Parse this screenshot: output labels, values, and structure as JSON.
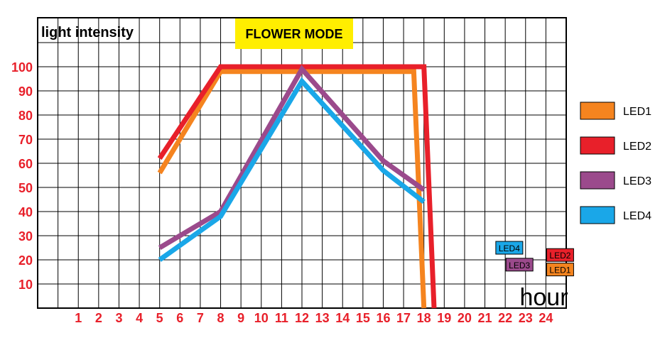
{
  "chart_data": {
    "type": "line",
    "title": "FLOWER MODE",
    "ylabel": "light intensity",
    "xlabel": "hour",
    "x_ticks": [
      "1",
      "2",
      "3",
      "4",
      "5",
      "6",
      "7",
      "8",
      "9",
      "10",
      "11",
      "12",
      "13",
      "14",
      "15",
      "16",
      "17",
      "18",
      "19",
      "20",
      "21",
      "22",
      "23",
      "24"
    ],
    "y_ticks": [
      "10",
      "20",
      "30",
      "40",
      "50",
      "60",
      "70",
      "80",
      "90",
      "100"
    ],
    "xlim": [
      0,
      25
    ],
    "ylim": [
      0,
      110
    ],
    "grid": true,
    "legend_placement": "right",
    "series": [
      {
        "name": "LED1",
        "color": "#f5841f",
        "points": [
          [
            5,
            56
          ],
          [
            8,
            98
          ],
          [
            17.5,
            98
          ],
          [
            18,
            0
          ]
        ]
      },
      {
        "name": "LED2",
        "color": "#e8202a",
        "points": [
          [
            5,
            62
          ],
          [
            8,
            100
          ],
          [
            18,
            100
          ],
          [
            18.5,
            0
          ]
        ]
      },
      {
        "name": "LED3",
        "color": "#9b4a8c",
        "points": [
          [
            5,
            25
          ],
          [
            8,
            40
          ],
          [
            12,
            99
          ],
          [
            16,
            61
          ],
          [
            18,
            49
          ]
        ]
      },
      {
        "name": "LED4",
        "color": "#1aa7e8",
        "points": [
          [
            5,
            20
          ],
          [
            8,
            38
          ],
          [
            12,
            94
          ],
          [
            16,
            57
          ],
          [
            18,
            44
          ]
        ]
      }
    ],
    "annotations": [
      {
        "text": "LED4",
        "color": "#1aa7e8",
        "x": 22.2,
        "y": 25
      },
      {
        "text": "LED3",
        "color": "#9b4a8c",
        "x": 22.7,
        "y": 18
      },
      {
        "text": "LED2",
        "color": "#e8202a",
        "x": 24.7,
        "y": 22
      },
      {
        "text": "LED1",
        "color": "#f5841f",
        "x": 24.7,
        "y": 16
      }
    ]
  },
  "colors": {
    "tick_labels": "#e8202a",
    "title_box": "#ffee00",
    "grid": "#000000"
  }
}
